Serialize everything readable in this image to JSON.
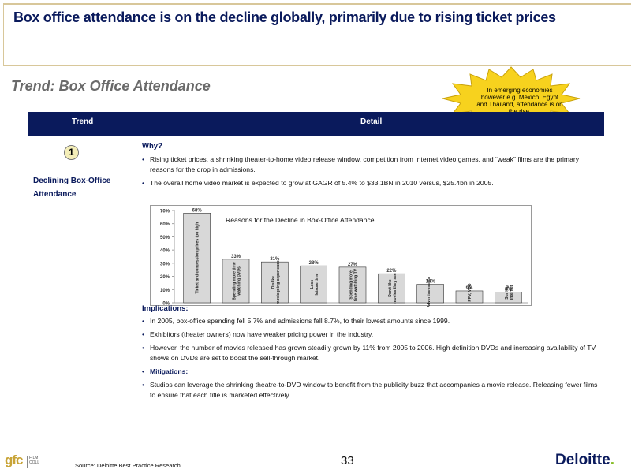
{
  "title": "Box office attendance is on the decline globally, primarily due to rising ticket prices",
  "subtitle": "Trend: Box Office Attendance",
  "callout": "In emerging economies however e.g. Mexico, Egypt and Thailand, attendance is on the rise.",
  "table_header": {
    "trend": "Trend",
    "detail": "Detail"
  },
  "trend": {
    "number": "1",
    "label": "Declining Box-Office Attendance"
  },
  "why": {
    "heading": "Why?",
    "bullets": [
      "Rising ticket prices, a shrinking theater-to-home video release window, competition from Internet video games, and “weak” films are the primary reasons for the drop in admissions.",
      "The overall home video market is expected to grow at GAGR of 5.4% to $33.1BN in 2010 versus, $25.4bn in 2005."
    ]
  },
  "implications": {
    "heading": "Implications:",
    "bullets": [
      "In 2005, box-office spending fell 5.7% and admissions fell 8.7%, to their lowest amounts since 1999.",
      "Exhibitors (theater owners) now have weaker pricing power in the industry.",
      "However, the number of movies released has grown steadily grown by 11% from 2005 to 2006. High definition DVDs and increasing availability of TV shows on DVDs are set to boost the sell-through market."
    ],
    "mitigations_label": "Mitigations:",
    "mitigations_bullet": "Studios can leverage the shrinking theatre-to-DVD window to benefit from the publicity buzz that accompanies a movie release. Releasing fewer films to ensure that each title is marketed effectively."
  },
  "chart_data": {
    "type": "bar",
    "title": "Reasons for the Decline in Box-Office Attendance",
    "categories": [
      "Ticket and concession prices too high",
      "Spending more time watching DVDs",
      "Dislike moviegoing experience",
      "Less leisure time",
      "Spending more time watching TV",
      "Don't like movies they see",
      "Advertise-ments",
      "PPV, VOD",
      "Surfing Internet"
    ],
    "values": [
      68,
      33,
      31,
      28,
      27,
      22,
      14,
      9,
      8
    ],
    "value_labels": [
      "68%",
      "33%",
      "31%",
      "28%",
      "27%",
      "22%",
      "14%",
      "9%",
      "8%"
    ],
    "y_ticks": [
      "0%",
      "10%",
      "20%",
      "30%",
      "40%",
      "50%",
      "60%",
      "70%"
    ],
    "ylim": [
      0,
      70
    ],
    "bar_color": "#d8d8d8"
  },
  "footer": {
    "logo": "gfc",
    "logo_sub": "FILM COLL",
    "source": "Source: Deloitte Best Practice Research",
    "page_number": "33",
    "brand": "Deloitte",
    "brand_dot": "."
  },
  "colors": {
    "navy": "#0a1a5c",
    "burst": "#f7d21e",
    "gold": "#c8a438",
    "green": "#86bc25"
  }
}
